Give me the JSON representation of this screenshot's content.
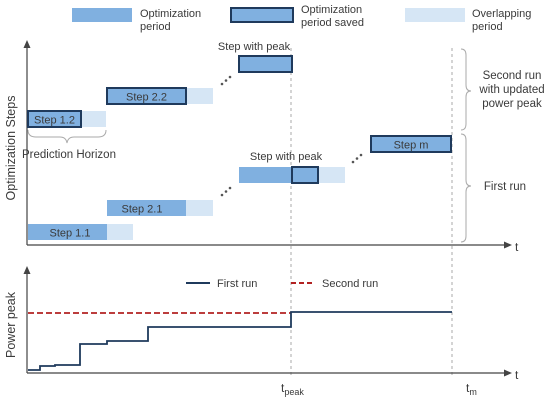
{
  "legend": {
    "optimization": "Optimization period",
    "saved": "Optimization period saved",
    "overlapping": "Overlapping period"
  },
  "top_chart": {
    "ylabel": "Optimization Steps",
    "xlabel": "t",
    "steps": {
      "s11": "Step 1.1",
      "s12": "Step 1.2",
      "s21": "Step 2.1",
      "s22": "Step 2.2",
      "sm": "Step m"
    },
    "peak_label_first": "Step with peak",
    "peak_label_second": "Step with peak",
    "prediction_horizon": "Prediction Horizon",
    "second_run_label": "Second run with updated power peak",
    "first_run_label": "First run"
  },
  "bottom_chart": {
    "ylabel": "Power peak",
    "xlabel": "t",
    "legend_first": "First run",
    "legend_second": "Second run",
    "tick_peak_main": "t",
    "tick_peak_sub": "peak",
    "tick_m_main": "t",
    "tick_m_sub": "m",
    "colors": {
      "first": "#1f3a5c",
      "second": "#b22222"
    }
  }
}
